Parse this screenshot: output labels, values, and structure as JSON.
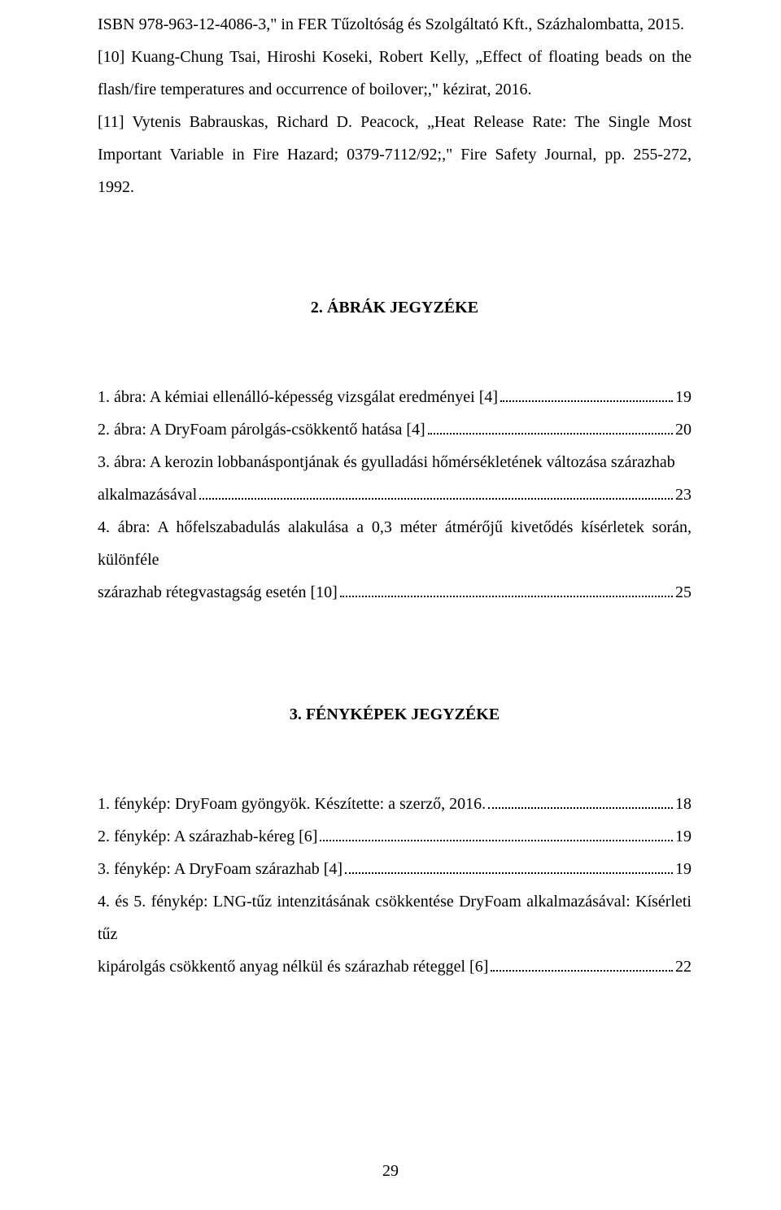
{
  "refs": {
    "line1": "ISBN 978-963-12-4086-3,\" in FER Tűzoltóság és Szolgáltató Kft., Százhalombatta, 2015.",
    "line2": "[10] Kuang-Chung Tsai, Hiroshi Koseki, Robert Kelly, „Effect of floating beads on the flash/fire temperatures and occurrence of boilover;,\" kézirat, 2016.",
    "line3": "[11] Vytenis Babrauskas, Richard D. Peacock, „Heat Release Rate: The Single Most Important Variable in Fire Hazard; 0379-7112/92;,\" Fire Safety Journal, pp. 255-272, 1992."
  },
  "section2": {
    "title": "2. ÁBRÁK JEGYZÉKE",
    "items": [
      {
        "text": "1. ábra: A kémiai ellenálló-képesség vizsgálat eredményei [4]",
        "page": "19"
      },
      {
        "text": "2. ábra: A DryFoam párolgás-csökkentő hatása [4]",
        "page": "20"
      },
      {
        "pre": "3. ábra: A kerozin lobbanáspontjának és gyulladási hőmérsékletének változása szárazhab",
        "last": "alkalmazásával",
        "page": "23"
      },
      {
        "pre": "4. ábra: A hőfelszabadulás alakulása a 0,3 méter átmérőjű kivetődés kísérletek során, különféle",
        "last": "szárazhab rétegvastagság esetén [10]",
        "page": "25"
      }
    ]
  },
  "section3": {
    "title": "3. FÉNYKÉPEK JEGYZÉKE",
    "items": [
      {
        "text": "1. fénykép: DryFoam gyöngyök. Készítette: a szerző, 2016.",
        "page": "18"
      },
      {
        "text": "2. fénykép: A szárazhab-kéreg [6]",
        "page": "19"
      },
      {
        "text": "3. fénykép: A DryFoam szárazhab [4]",
        "page": "19"
      },
      {
        "pre": "4. és 5. fénykép: LNG-tűz intenzitásának csökkentése DryFoam alkalmazásával: Kísérleti tűz",
        "last": "kipárolgás csökkentő anyag nélkül és szárazhab réteggel [6]",
        "page": "22"
      }
    ]
  },
  "pageNumber": "29"
}
